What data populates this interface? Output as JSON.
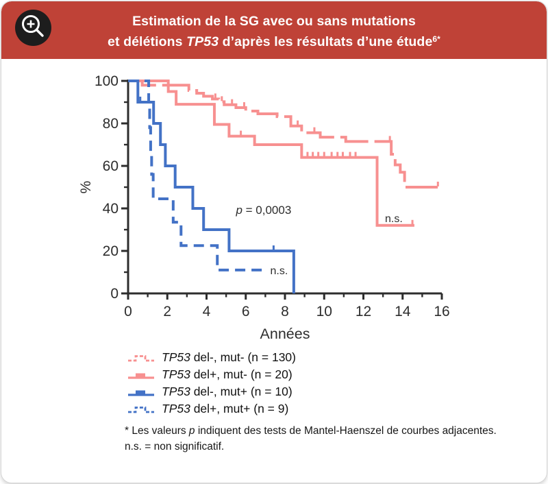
{
  "header": {
    "title_line1": "Estimation de la SG avec ou sans mutations",
    "title_line2_pre": "et délétions ",
    "title_line2_italic": "TP53",
    "title_line2_post": " d’après les résultats d’une étude",
    "title_line2_sup": "6*",
    "background_color": "#bf4237",
    "icon": "zoom-in-icon"
  },
  "chart_data": {
    "type": "line",
    "subtype": "kaplan-meier-step",
    "xlabel": "Années",
    "ylabel": "%",
    "xlim": [
      0,
      16
    ],
    "ylim": [
      0,
      100
    ],
    "x_major_ticks": [
      0,
      2,
      4,
      6,
      8,
      10,
      12,
      14,
      16
    ],
    "x_minor_step": 1,
    "y_major_ticks": [
      0,
      20,
      40,
      60,
      80,
      100
    ],
    "y_minor_step": 10,
    "axis_color": "#2d2d2d",
    "series": [
      {
        "name": "TP53 del-, mut- (n = 130)",
        "color": "#f79090",
        "style": "dashed-long",
        "points": [
          [
            0,
            100
          ],
          [
            0.72,
            98
          ],
          [
            3.1,
            95.5
          ],
          [
            3.5,
            94.2
          ],
          [
            3.85,
            92.8
          ],
          [
            4.3,
            91.5
          ],
          [
            4.62,
            90.2
          ],
          [
            4.9,
            88.8
          ],
          [
            5.5,
            87.4
          ],
          [
            6.0,
            85.8
          ],
          [
            6.62,
            84.5
          ],
          [
            7.6,
            83.2
          ],
          [
            8.3,
            78.8
          ],
          [
            8.85,
            75.6
          ],
          [
            9.8,
            73.5
          ],
          [
            11.1,
            71.5
          ],
          [
            13.42,
            65.5
          ],
          [
            13.62,
            60.5
          ],
          [
            13.88,
            57
          ],
          [
            14.1,
            50
          ]
        ],
        "end_x": 15.95,
        "censors": [
          [
            4.45,
            91.5
          ],
          [
            4.78,
            90.2
          ],
          [
            5.3,
            88.8
          ],
          [
            5.92,
            87.4
          ],
          [
            8.65,
            78.8
          ],
          [
            9.5,
            75.6
          ],
          [
            13.35,
            71.5
          ],
          [
            15.8,
            50
          ]
        ]
      },
      {
        "name": "TP53 del+, mut- (n = 20)",
        "color": "#f79090",
        "style": "solid",
        "points": [
          [
            0,
            100
          ],
          [
            2.05,
            95
          ],
          [
            2.45,
            89
          ],
          [
            4.4,
            79.5
          ],
          [
            5.15,
            74
          ],
          [
            6.45,
            70
          ],
          [
            8.85,
            64
          ],
          [
            12.7,
            32
          ]
        ],
        "end_x": 14.6,
        "censors": [
          [
            5.75,
            74
          ],
          [
            9.15,
            64
          ],
          [
            9.42,
            64
          ],
          [
            9.7,
            64
          ],
          [
            10.0,
            64
          ],
          [
            10.38,
            64
          ],
          [
            10.68,
            64
          ],
          [
            10.95,
            64
          ],
          [
            11.32,
            64
          ],
          [
            11.6,
            64
          ],
          [
            14.5,
            32
          ]
        ]
      },
      {
        "name": "TP53 del-, mut+ (n = 10)",
        "color": "#4372c6",
        "style": "solid",
        "points": [
          [
            0,
            100
          ],
          [
            0.5,
            90
          ],
          [
            1.3,
            80
          ],
          [
            1.65,
            70
          ],
          [
            1.9,
            60
          ],
          [
            2.4,
            50
          ],
          [
            3.3,
            40
          ],
          [
            3.85,
            30
          ],
          [
            5.15,
            20
          ],
          [
            8.45,
            0
          ]
        ],
        "end_x": 8.45,
        "censors": [
          [
            0.62,
            90
          ],
          [
            7.42,
            20
          ]
        ]
      },
      {
        "name": "TP53 del+, mut+ (n = 9)",
        "color": "#4372c6",
        "style": "dashed",
        "points": [
          [
            0,
            100
          ],
          [
            1.05,
            89
          ],
          [
            1.1,
            78
          ],
          [
            1.15,
            67
          ],
          [
            1.2,
            56
          ],
          [
            1.28,
            44.5
          ],
          [
            2.3,
            33.5
          ],
          [
            2.7,
            22.5
          ],
          [
            4.55,
            11
          ]
        ],
        "end_x": 7.0,
        "censors": []
      }
    ],
    "annotations": [
      {
        "text_italic": "p",
        "text": " = 0,0003",
        "x": 5.5,
        "y": 37.5,
        "size": 17
      },
      {
        "text": "n.s.",
        "x": 13.1,
        "y": 33.5,
        "size": 16
      },
      {
        "text": "n.s.",
        "x": 7.25,
        "y": 9,
        "size": 16
      }
    ]
  },
  "legend": {
    "items": [
      {
        "prefix": "TP53",
        "rest": " del-, mut- (n = 130)",
        "color": "#f79090",
        "style": "dashed"
      },
      {
        "prefix": "TP53",
        "rest": " del+, mut- (n = 20)",
        "color": "#f79090",
        "style": "solid"
      },
      {
        "prefix": "TP53",
        "rest": " del-, mut+ (n = 10)",
        "color": "#4372c6",
        "style": "solid"
      },
      {
        "prefix": "TP53",
        "rest": " del+, mut+ (n = 9)",
        "color": "#4372c6",
        "style": "dashed"
      }
    ]
  },
  "footnote": {
    "line1_pre": "* Les valeurs ",
    "line1_italic": "p",
    "line1_post": " indiquent des tests de Mantel-Haenszel de courbes adjacentes.",
    "line2": "n.s. = non significatif."
  }
}
